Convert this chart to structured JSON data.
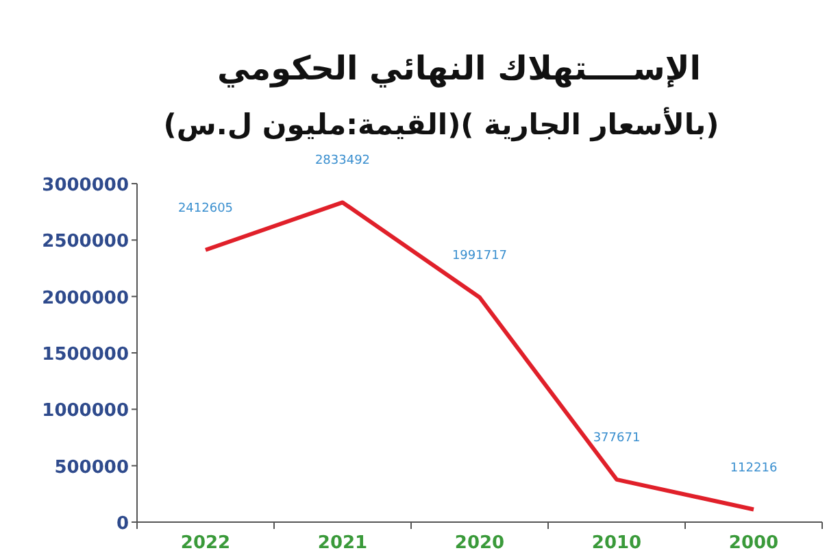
{
  "chart_data": {
    "type": "line",
    "title": "الإســــتهلاك النهائي الحكومي",
    "subtitle": "(بالأسعار الجارية )(القيمة:مليون ل.س)",
    "categories": [
      "2022",
      "2021",
      "2020",
      "2010",
      "2000"
    ],
    "series": [
      {
        "color": "#e0202a",
        "values": [
          2412605,
          2833492,
          1991717,
          377671,
          112216
        ]
      }
    ],
    "data_labels": true,
    "ylim": [
      0,
      3000000
    ],
    "yticks": [
      0,
      500000,
      1000000,
      1500000,
      2000000,
      2500000,
      3000000
    ],
    "marker": "none",
    "line_style": "solid"
  }
}
